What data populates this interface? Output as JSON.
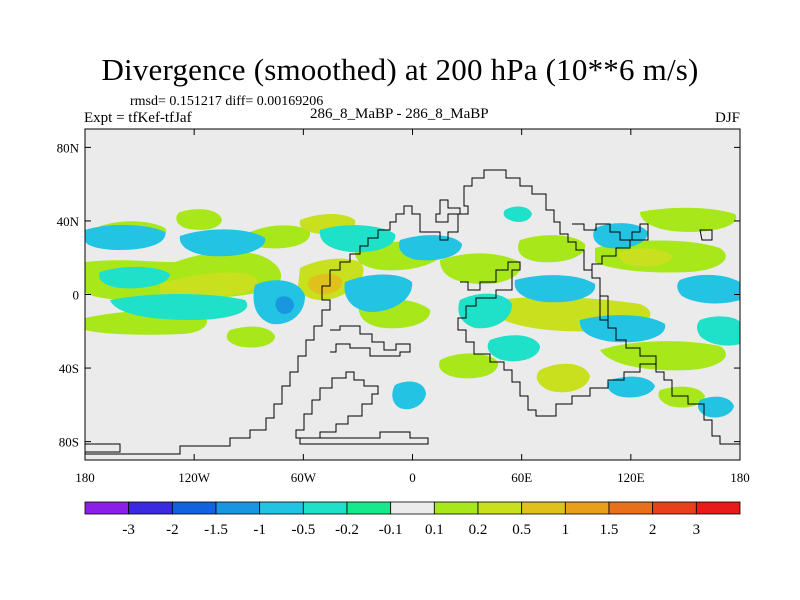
{
  "title": "Divergence (smoothed) at 200 hPa (10**6 m/s)",
  "stats_line": "rmsd= 0.151217 diff= 0.00169206",
  "experiment": "Expt = tfKef-tfJaf",
  "cases": "286_8_MaBP - 286_8_MaBP",
  "season": "DJF",
  "map": {
    "projection": "cylindrical-equidistant",
    "lon_range": [
      -180,
      180
    ],
    "lat_range": [
      -90,
      90
    ],
    "background_color": "#ebebeb",
    "x_ticks": [
      {
        "lon": -180,
        "label": "180"
      },
      {
        "lon": -120,
        "label": "120W"
      },
      {
        "lon": -60,
        "label": "60W"
      },
      {
        "lon": 0,
        "label": "0"
      },
      {
        "lon": 60,
        "label": "60E"
      },
      {
        "lon": 120,
        "label": "120E"
      },
      {
        "lon": 180,
        "label": "180"
      }
    ],
    "y_ticks": [
      {
        "lat": 80,
        "label": "80N"
      },
      {
        "lat": 40,
        "label": "40N"
      },
      {
        "lat": 0,
        "label": "0"
      },
      {
        "lat": -40,
        "label": "40S"
      },
      {
        "lat": -80,
        "label": "80S"
      }
    ]
  },
  "colorbar": {
    "colors": [
      "#8b1fe8",
      "#3b2be0",
      "#1262e0",
      "#1a95e0",
      "#22c3e3",
      "#1fe0c8",
      "#16e88c",
      "#ececec",
      "#a8e81a",
      "#c8e01e",
      "#e0c01a",
      "#e8a01a",
      "#e8701a",
      "#e8401a",
      "#e81a1a"
    ],
    "labels": [
      "-3",
      "-2",
      "-1.5",
      "-1",
      "-0.5",
      "-0.2",
      "-0.1",
      "0.1",
      "0.2",
      "0.5",
      "1",
      "1.5",
      "2",
      "3"
    ]
  }
}
